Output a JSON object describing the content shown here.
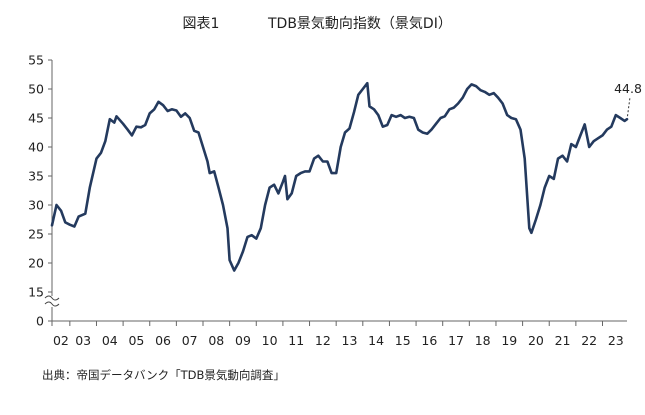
{
  "title_prefix": "図表1",
  "title_main": "TDB景気動向指数（景気DI）",
  "source": "出典：帝国データバンク「TDB景気動向調査」",
  "chart_data": {
    "type": "line",
    "title": "TDB景気動向指数（景気DI）",
    "xlabel": "",
    "ylabel": "",
    "ylim": [
      0,
      55
    ],
    "axis_break": "between 0 and 15",
    "y_ticks": [
      "0",
      "15",
      "20",
      "25",
      "30",
      "35",
      "40",
      "45",
      "50",
      "55"
    ],
    "x_tick_labels": [
      "02",
      "03",
      "04",
      "05",
      "06",
      "07",
      "08",
      "09",
      "10",
      "11",
      "12",
      "13",
      "14",
      "15",
      "16",
      "17",
      "18",
      "19",
      "20",
      "21",
      "22",
      "23"
    ],
    "x_range": [
      2002.33,
      2023.92
    ],
    "line_color": "#243a5e",
    "annotation": {
      "label": "44.8",
      "x": 2023.92,
      "y": 44.8
    },
    "series": [
      {
        "name": "景気DI",
        "points": [
          [
            2002.33,
            26.5
          ],
          [
            2002.5,
            30.0
          ],
          [
            2002.67,
            29.0
          ],
          [
            2002.83,
            27.0
          ],
          [
            2003.0,
            26.6
          ],
          [
            2003.17,
            26.3
          ],
          [
            2003.33,
            28.0
          ],
          [
            2003.58,
            28.5
          ],
          [
            2003.75,
            33.0
          ],
          [
            2004.0,
            38.0
          ],
          [
            2004.17,
            39.0
          ],
          [
            2004.33,
            41.0
          ],
          [
            2004.5,
            44.8
          ],
          [
            2004.67,
            44.2
          ],
          [
            2004.75,
            45.3
          ],
          [
            2005.0,
            44.0
          ],
          [
            2005.17,
            43.0
          ],
          [
            2005.33,
            42.0
          ],
          [
            2005.5,
            43.5
          ],
          [
            2005.67,
            43.4
          ],
          [
            2005.83,
            43.8
          ],
          [
            2006.0,
            45.8
          ],
          [
            2006.17,
            46.5
          ],
          [
            2006.33,
            47.8
          ],
          [
            2006.5,
            47.2
          ],
          [
            2006.67,
            46.2
          ],
          [
            2006.83,
            46.5
          ],
          [
            2007.0,
            46.3
          ],
          [
            2007.17,
            45.2
          ],
          [
            2007.33,
            45.8
          ],
          [
            2007.5,
            45.0
          ],
          [
            2007.67,
            42.8
          ],
          [
            2007.83,
            42.5
          ],
          [
            2008.0,
            40.0
          ],
          [
            2008.17,
            37.5
          ],
          [
            2008.25,
            35.5
          ],
          [
            2008.42,
            35.8
          ],
          [
            2008.58,
            33.0
          ],
          [
            2008.75,
            30.0
          ],
          [
            2008.92,
            26.0
          ],
          [
            2009.0,
            20.5
          ],
          [
            2009.17,
            18.7
          ],
          [
            2009.33,
            20.0
          ],
          [
            2009.5,
            22.0
          ],
          [
            2009.67,
            24.5
          ],
          [
            2009.83,
            24.8
          ],
          [
            2010.0,
            24.2
          ],
          [
            2010.17,
            26.0
          ],
          [
            2010.33,
            30.0
          ],
          [
            2010.5,
            33.0
          ],
          [
            2010.67,
            33.5
          ],
          [
            2010.83,
            32.0
          ],
          [
            2011.0,
            34.0
          ],
          [
            2011.08,
            35.0
          ],
          [
            2011.17,
            31.0
          ],
          [
            2011.33,
            32.0
          ],
          [
            2011.5,
            35.0
          ],
          [
            2011.67,
            35.5
          ],
          [
            2011.83,
            35.8
          ],
          [
            2012.0,
            35.8
          ],
          [
            2012.17,
            38.0
          ],
          [
            2012.33,
            38.5
          ],
          [
            2012.5,
            37.5
          ],
          [
            2012.67,
            37.5
          ],
          [
            2012.83,
            35.5
          ],
          [
            2013.0,
            35.5
          ],
          [
            2013.17,
            40.0
          ],
          [
            2013.33,
            42.5
          ],
          [
            2013.5,
            43.2
          ],
          [
            2013.67,
            46.0
          ],
          [
            2013.83,
            49.0
          ],
          [
            2014.0,
            50.0
          ],
          [
            2014.17,
            51.0
          ],
          [
            2014.25,
            47.0
          ],
          [
            2014.42,
            46.5
          ],
          [
            2014.58,
            45.5
          ],
          [
            2014.75,
            43.5
          ],
          [
            2014.92,
            43.8
          ],
          [
            2015.08,
            45.5
          ],
          [
            2015.25,
            45.2
          ],
          [
            2015.42,
            45.5
          ],
          [
            2015.58,
            45.0
          ],
          [
            2015.75,
            45.2
          ],
          [
            2015.92,
            45.0
          ],
          [
            2016.08,
            43.0
          ],
          [
            2016.25,
            42.5
          ],
          [
            2016.42,
            42.3
          ],
          [
            2016.58,
            43.0
          ],
          [
            2016.75,
            44.0
          ],
          [
            2016.92,
            45.0
          ],
          [
            2017.08,
            45.3
          ],
          [
            2017.25,
            46.5
          ],
          [
            2017.42,
            46.8
          ],
          [
            2017.58,
            47.5
          ],
          [
            2017.75,
            48.5
          ],
          [
            2017.92,
            50.0
          ],
          [
            2018.08,
            50.8
          ],
          [
            2018.25,
            50.5
          ],
          [
            2018.42,
            49.8
          ],
          [
            2018.58,
            49.5
          ],
          [
            2018.75,
            49.0
          ],
          [
            2018.92,
            49.3
          ],
          [
            2019.08,
            48.5
          ],
          [
            2019.25,
            47.5
          ],
          [
            2019.42,
            45.5
          ],
          [
            2019.58,
            45.0
          ],
          [
            2019.75,
            44.8
          ],
          [
            2019.92,
            43.0
          ],
          [
            2020.08,
            38.0
          ],
          [
            2020.25,
            26.0
          ],
          [
            2020.33,
            25.2
          ],
          [
            2020.5,
            27.5
          ],
          [
            2020.67,
            30.0
          ],
          [
            2020.83,
            33.0
          ],
          [
            2021.0,
            35.0
          ],
          [
            2021.17,
            34.5
          ],
          [
            2021.33,
            38.0
          ],
          [
            2021.5,
            38.5
          ],
          [
            2021.67,
            37.5
          ],
          [
            2021.83,
            40.5
          ],
          [
            2022.0,
            40.0
          ],
          [
            2022.17,
            42.0
          ],
          [
            2022.33,
            43.9
          ],
          [
            2022.5,
            40.0
          ],
          [
            2022.67,
            41.0
          ],
          [
            2022.83,
            41.5
          ],
          [
            2023.0,
            42.0
          ],
          [
            2023.17,
            43.0
          ],
          [
            2023.33,
            43.5
          ],
          [
            2023.5,
            45.5
          ],
          [
            2023.67,
            45.0
          ],
          [
            2023.83,
            44.5
          ],
          [
            2023.92,
            44.8
          ]
        ]
      }
    ]
  }
}
